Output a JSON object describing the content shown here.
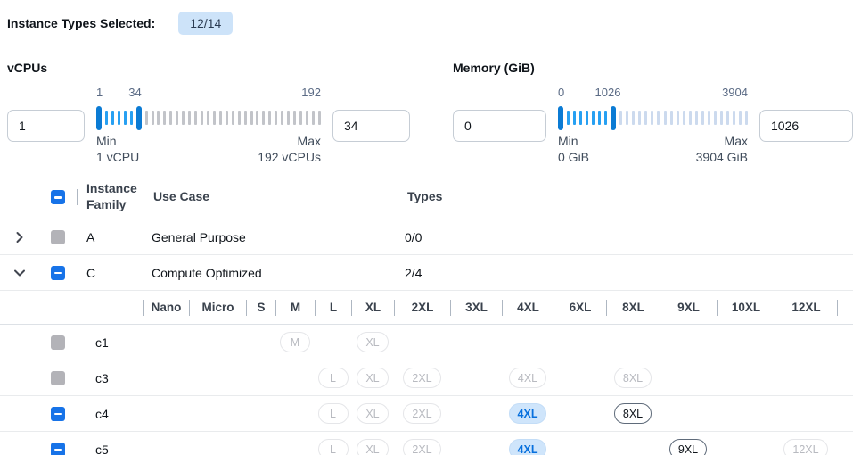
{
  "header": {
    "label": "Instance Types Selected:",
    "badge": "12/14"
  },
  "filters": [
    {
      "label": "vCPUs",
      "from_value": "1",
      "to_value": "34",
      "scale_labels": [
        "1",
        "34",
        "192"
      ],
      "min_label": "Min",
      "min_sub": "1 vCPU",
      "max_label": "Max",
      "max_sub": "192 vCPUs",
      "slider": {
        "min": 1,
        "max": 192,
        "from": 1,
        "to": 34,
        "ticks": 36,
        "selected_color": "#27a0f2",
        "rest_color": "#c2c4c9"
      }
    },
    {
      "label": "Memory (GiB)",
      "from_value": "0",
      "to_value": "1026",
      "scale_labels": [
        "0",
        "1026",
        "3904"
      ],
      "min_label": "Min",
      "min_sub": "0 GiB",
      "max_label": "Max",
      "max_sub": "3904 GiB",
      "slider": {
        "min": 0,
        "max": 3904,
        "from": 0,
        "to": 1026,
        "ticks": 30,
        "selected_color": "#27a0f2",
        "rest_color": "#ccdaee"
      }
    }
  ],
  "table": {
    "columns": {
      "family": "Instance Family",
      "use_case": "Use Case",
      "types": "Types"
    },
    "header_checkbox": "indeterminate",
    "size_columns": [
      "Nano",
      "Micro",
      "S",
      "M",
      "L",
      "XL",
      "2XL",
      "3XL",
      "4XL",
      "6XL",
      "8XL",
      "9XL",
      "10XL",
      "12XL"
    ],
    "family_rows": [
      {
        "family": "A",
        "use_case": "General Purpose",
        "types": "0/0",
        "expanded": false,
        "checkbox": "disabled",
        "icon": "chevron-right-icon"
      },
      {
        "family": "C",
        "use_case": "Compute Optimized",
        "types": "2/4",
        "expanded": true,
        "checkbox": "indeterminate",
        "icon": "chevron-down-icon"
      }
    ],
    "instance_rows": [
      {
        "name": "c1",
        "checkbox": "disabled",
        "pills": [
          {
            "size": "M",
            "state": "disabled"
          },
          {
            "size": "XL",
            "state": "disabled"
          }
        ]
      },
      {
        "name": "c3",
        "checkbox": "disabled",
        "pills": [
          {
            "size": "L",
            "state": "disabled"
          },
          {
            "size": "XL",
            "state": "disabled"
          },
          {
            "size": "2XL",
            "state": "disabled"
          },
          {
            "size": "4XL",
            "state": "disabled"
          },
          {
            "size": "8XL",
            "state": "disabled"
          }
        ]
      },
      {
        "name": "c4",
        "checkbox": "indeterminate",
        "pills": [
          {
            "size": "L",
            "state": "disabled"
          },
          {
            "size": "XL",
            "state": "disabled"
          },
          {
            "size": "2XL",
            "state": "disabled"
          },
          {
            "size": "4XL",
            "state": "selected"
          },
          {
            "size": "8XL",
            "state": "enabled"
          }
        ]
      },
      {
        "name": "c5",
        "checkbox": "indeterminate",
        "pills": [
          {
            "size": "L",
            "state": "disabled"
          },
          {
            "size": "XL",
            "state": "disabled"
          },
          {
            "size": "2XL",
            "state": "disabled"
          },
          {
            "size": "4XL",
            "state": "selected"
          },
          {
            "size": "9XL",
            "state": "enabled"
          },
          {
            "size": "12XL",
            "state": "disabled"
          }
        ]
      }
    ]
  },
  "colors": {
    "accent_blue": "#0b7bd4",
    "checkbox_blue": "#1773e8",
    "badge_bg": "#cde3f9",
    "selected_pill_bg": "#cfe5fb",
    "selected_pill_text": "#0770dd",
    "disabled_gray": "#b3b3b8",
    "divider": "#e9ebed"
  }
}
